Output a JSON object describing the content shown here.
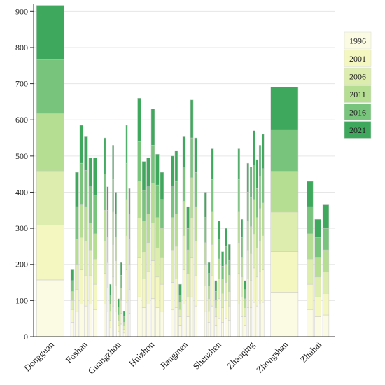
{
  "chart_data": {
    "type": "bar",
    "stacked": true,
    "title": "",
    "xlabel": "",
    "ylabel": "",
    "ylim": [
      0,
      920
    ],
    "yticks": [
      0,
      100,
      200,
      300,
      400,
      500,
      600,
      700,
      800,
      900
    ],
    "grid": true,
    "legend_position": "right",
    "series": [
      {
        "name": "1996",
        "color": "#fbfbe4"
      },
      {
        "name": "2001",
        "color": "#f4f7c0"
      },
      {
        "name": "2006",
        "color": "#dcedae"
      },
      {
        "name": "2011",
        "color": "#b5de92"
      },
      {
        "name": "2016",
        "color": "#79c47c"
      },
      {
        "name": "2021",
        "color": "#3ea95c"
      }
    ],
    "categories": [
      {
        "name": "Dongguan",
        "bars": [
          [
            157,
            152,
            150,
            158,
            150,
            150
          ]
        ]
      },
      {
        "name": "Foshan",
        "bars": [
          [
            40,
            35,
            25,
            25,
            30,
            30
          ],
          [
            70,
            60,
            70,
            70,
            90,
            95
          ],
          [
            90,
            95,
            90,
            90,
            115,
            105
          ],
          [
            85,
            85,
            95,
            95,
            100,
            95
          ],
          [
            90,
            80,
            70,
            75,
            100,
            80
          ],
          [
            75,
            70,
            70,
            70,
            105,
            105
          ]
        ]
      },
      {
        "name": "Guangzhou",
        "bars": [
          [
            90,
            85,
            90,
            85,
            100,
            100
          ],
          [
            70,
            65,
            70,
            70,
            75,
            65
          ],
          [
            25,
            20,
            25,
            20,
            25,
            30
          ],
          [
            85,
            80,
            90,
            90,
            90,
            95
          ],
          [
            70,
            70,
            70,
            65,
            65,
            60
          ],
          [
            15,
            15,
            15,
            15,
            20,
            25
          ],
          [
            35,
            30,
            35,
            35,
            35,
            35
          ],
          [
            10,
            10,
            10,
            10,
            15,
            15
          ],
          [
            95,
            90,
            95,
            100,
            100,
            105
          ],
          [
            65,
            65,
            70,
            70,
            70,
            70
          ]
        ]
      },
      {
        "name": "Huizhou",
        "bars": [
          [
            110,
            110,
            110,
            100,
            110,
            120
          ],
          [
            80,
            80,
            75,
            85,
            85,
            80
          ],
          [
            90,
            90,
            80,
            80,
            75,
            80
          ],
          [
            105,
            105,
            105,
            110,
            105,
            100
          ],
          [
            80,
            85,
            80,
            85,
            90,
            85
          ],
          [
            70,
            75,
            75,
            80,
            80,
            75
          ]
        ]
      },
      {
        "name": "Jiangmen",
        "bars": [
          [
            75,
            75,
            90,
            90,
            85,
            85
          ],
          [
            80,
            80,
            90,
            90,
            90,
            85
          ],
          [
            30,
            25,
            20,
            20,
            20,
            30
          ],
          [
            90,
            95,
            95,
            95,
            95,
            85
          ],
          [
            55,
            55,
            65,
            65,
            60,
            60
          ],
          [
            110,
            110,
            110,
            110,
            110,
            105
          ],
          [
            85,
            85,
            95,
            95,
            95,
            95
          ]
        ]
      },
      {
        "name": "Shenzhen",
        "bars": [
          [
            70,
            70,
            60,
            60,
            70,
            70
          ],
          [
            40,
            30,
            35,
            35,
            35,
            30
          ],
          [
            85,
            85,
            85,
            90,
            90,
            85
          ],
          [
            30,
            25,
            25,
            20,
            25,
            30
          ],
          [
            50,
            55,
            55,
            55,
            55,
            50
          ],
          [
            40,
            40,
            40,
            40,
            35,
            40
          ],
          [
            50,
            50,
            50,
            50,
            50,
            50
          ],
          [
            45,
            40,
            40,
            45,
            40,
            45
          ]
        ]
      },
      {
        "name": "Zhaoqing",
        "bars": [
          [
            90,
            85,
            85,
            85,
            90,
            85
          ],
          [
            55,
            55,
            55,
            55,
            55,
            50
          ],
          [
            30,
            25,
            25,
            25,
            25,
            25
          ],
          [
            80,
            80,
            80,
            80,
            80,
            80
          ],
          [
            80,
            75,
            75,
            75,
            80,
            85
          ],
          [
            95,
            95,
            95,
            95,
            95,
            95
          ],
          [
            85,
            80,
            80,
            85,
            80,
            80
          ],
          [
            90,
            90,
            85,
            90,
            90,
            85
          ],
          [
            95,
            90,
            95,
            90,
            95,
            95
          ]
        ]
      },
      {
        "name": "Zhongshan",
        "bars": [
          [
            123,
            112,
            110,
            113,
            115,
            117
          ]
        ]
      },
      {
        "name": "Zhuhai",
        "bars": [
          [
            75,
            70,
            70,
            70,
            75,
            70
          ],
          [
            55,
            55,
            55,
            55,
            55,
            50
          ],
          [
            60,
            60,
            60,
            60,
            60,
            65
          ]
        ]
      }
    ]
  }
}
